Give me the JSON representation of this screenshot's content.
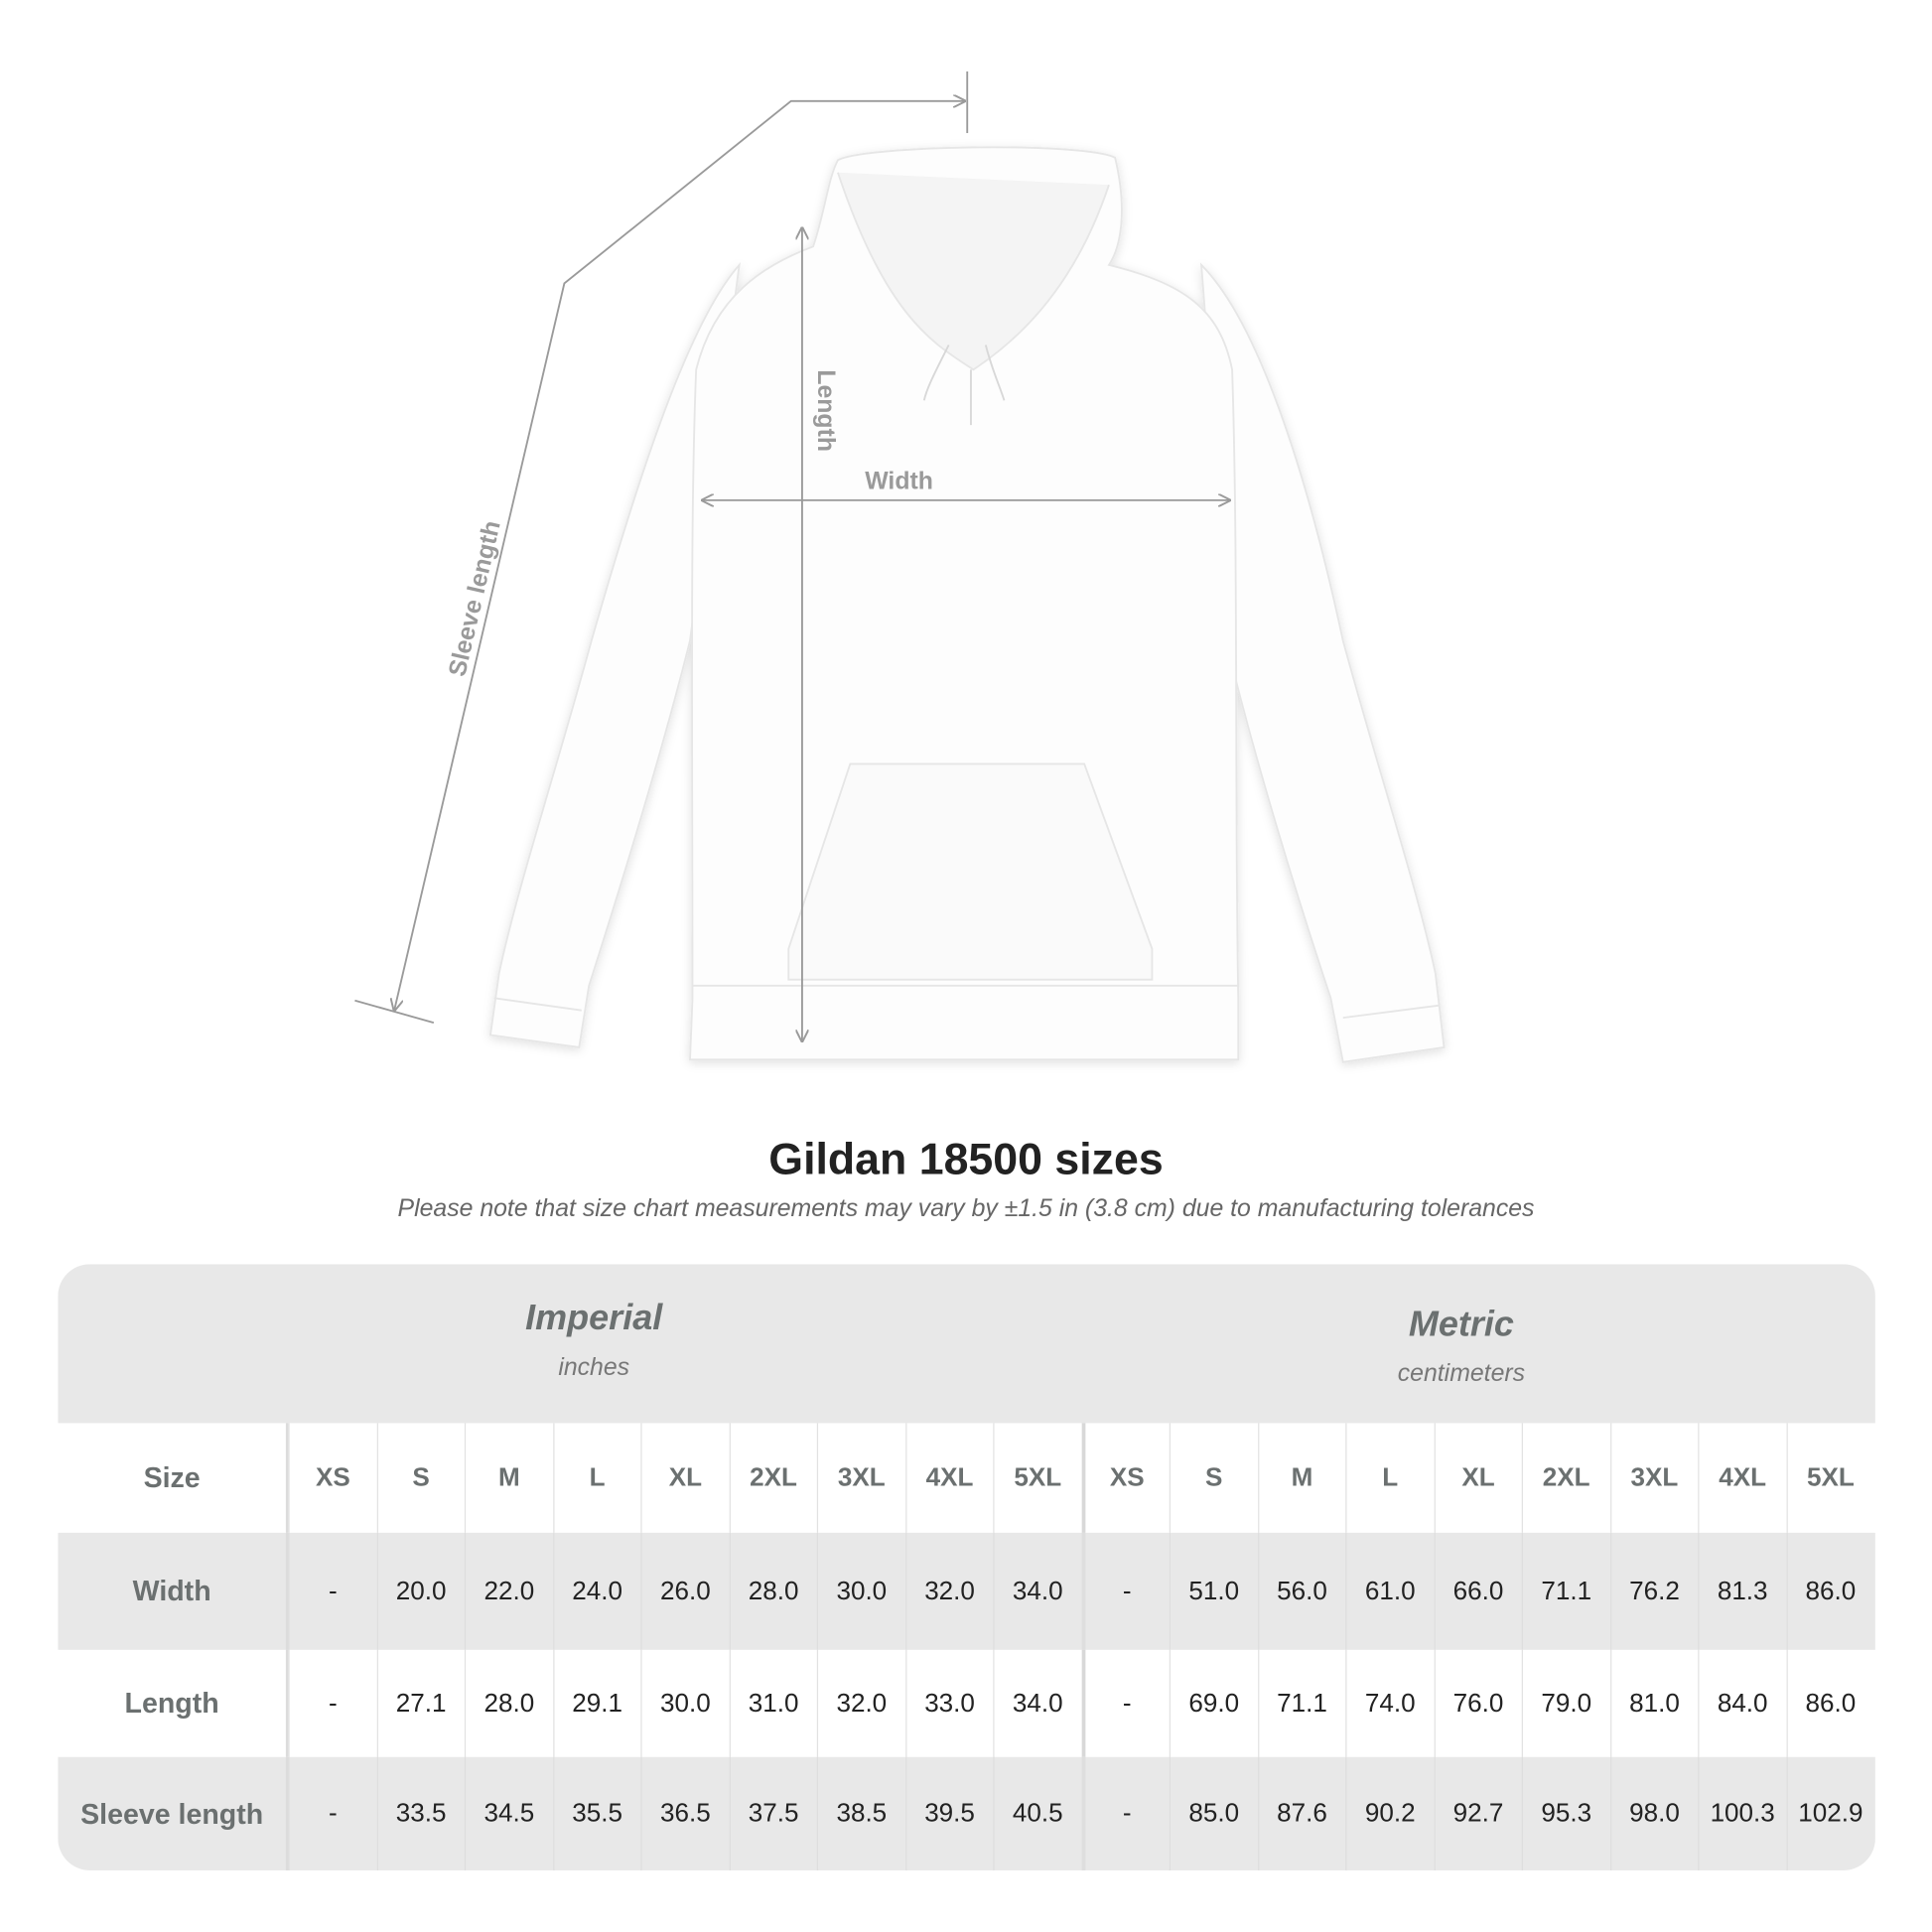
{
  "diagram": {
    "labels": {
      "sleeve": "Sleeve length",
      "length": "Length",
      "width": "Width"
    },
    "line_color": "#9a9a9a"
  },
  "title": "Gildan 18500 sizes",
  "note": "Please note that size chart measurements may vary by ±1.5 in (3.8 cm) due to manufacturing tolerances",
  "table": {
    "imperial": {
      "label": "Imperial",
      "unit": "inches"
    },
    "metric": {
      "label": "Metric",
      "unit": "centimeters"
    },
    "size_label": "Size",
    "sizes": [
      "XS",
      "S",
      "M",
      "L",
      "XL",
      "2XL",
      "3XL",
      "4XL",
      "5XL"
    ],
    "rows": [
      {
        "label": "Width",
        "imperial": [
          "-",
          "20.0",
          "22.0",
          "24.0",
          "26.0",
          "28.0",
          "30.0",
          "32.0",
          "34.0"
        ],
        "metric": [
          "-",
          "51.0",
          "56.0",
          "61.0",
          "66.0",
          "71.1",
          "76.2",
          "81.3",
          "86.0"
        ]
      },
      {
        "label": "Length",
        "imperial": [
          "-",
          "27.1",
          "28.0",
          "29.1",
          "30.0",
          "31.0",
          "32.0",
          "33.0",
          "34.0"
        ],
        "metric": [
          "-",
          "69.0",
          "71.1",
          "74.0",
          "76.0",
          "79.0",
          "81.0",
          "84.0",
          "86.0"
        ]
      },
      {
        "label": "Sleeve length",
        "imperial": [
          "-",
          "33.5",
          "34.5",
          "35.5",
          "36.5",
          "37.5",
          "38.5",
          "39.5",
          "40.5"
        ],
        "metric": [
          "-",
          "85.0",
          "87.6",
          "90.2",
          "92.7",
          "95.3",
          "98.0",
          "100.3",
          "102.9"
        ]
      }
    ],
    "colors": {
      "band": "#e8e8e8",
      "label_text": "#6b7070",
      "value_text": "#222222"
    }
  }
}
